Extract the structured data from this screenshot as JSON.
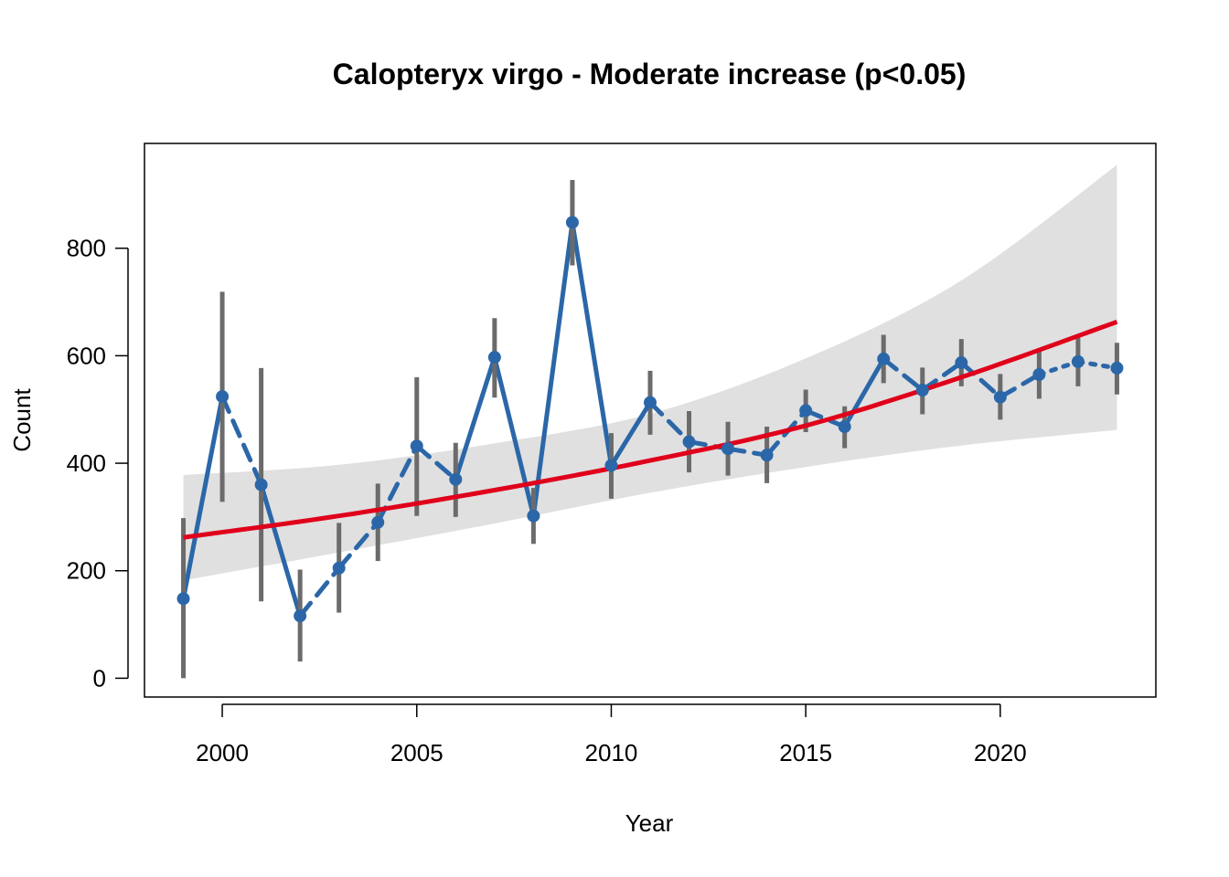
{
  "chart_data": {
    "type": "line",
    "title": "Calopteryx virgo - Moderate increase (p<0.05)",
    "xlabel": "Year",
    "ylabel": "Count",
    "xlim": [
      1998,
      2024
    ],
    "ylim": [
      -35,
      995
    ],
    "x_ticks": [
      2000,
      2005,
      2010,
      2015,
      2020
    ],
    "y_ticks": [
      0,
      200,
      400,
      600,
      800
    ],
    "grid": false,
    "legend": "none",
    "colors": {
      "observed": "#2b67a8",
      "errorbar": "#6b6b6b",
      "trend": "#e0001b",
      "ci_band": "#e0e0e0"
    },
    "observed": {
      "x": [
        1999,
        2000,
        2001,
        2002,
        2003,
        2004,
        2005,
        2006,
        2007,
        2008,
        2009,
        2010,
        2011,
        2012,
        2013,
        2014,
        2015,
        2016,
        2017,
        2018,
        2019,
        2020,
        2021,
        2022,
        2023
      ],
      "y": [
        148,
        524,
        360,
        116,
        205,
        290,
        432,
        370,
        597,
        302,
        848,
        396,
        513,
        440,
        427,
        415,
        498,
        468,
        594,
        536,
        587,
        523,
        565,
        589,
        577
      ],
      "lower": [
        0,
        328,
        143,
        31,
        122,
        218,
        302,
        300,
        522,
        250,
        768,
        334,
        453,
        383,
        377,
        363,
        458,
        428,
        549,
        491,
        543,
        481,
        520,
        543,
        528
      ],
      "upper": [
        298,
        719,
        577,
        202,
        289,
        362,
        560,
        438,
        670,
        354,
        927,
        456,
        572,
        497,
        477,
        468,
        537,
        506,
        639,
        578,
        631,
        566,
        609,
        636,
        624
      ],
      "segments": [
        "solid",
        "dashed",
        "solid",
        "dashed",
        "dashed",
        "dashed",
        "dashed",
        "solid",
        "solid",
        "solid",
        "solid",
        "solid",
        "dashed",
        "dashed",
        "dashed",
        "dashed",
        "dashed",
        "solid",
        "dashed",
        "dashed",
        "dashed",
        "dashed",
        "dotted",
        "dotted"
      ]
    },
    "trend": {
      "x": [
        1999,
        2003,
        2007,
        2011,
        2015,
        2019,
        2023
      ],
      "y": [
        262,
        302,
        350,
        405,
        470,
        560,
        663
      ]
    },
    "ci_band": {
      "x": [
        1999,
        2003,
        2007,
        2011,
        2015,
        2019,
        2023
      ],
      "lower": [
        182,
        234,
        288,
        345,
        393,
        433,
        462
      ],
      "upper": [
        378,
        397,
        437,
        492,
        595,
        740,
        955
      ]
    }
  }
}
